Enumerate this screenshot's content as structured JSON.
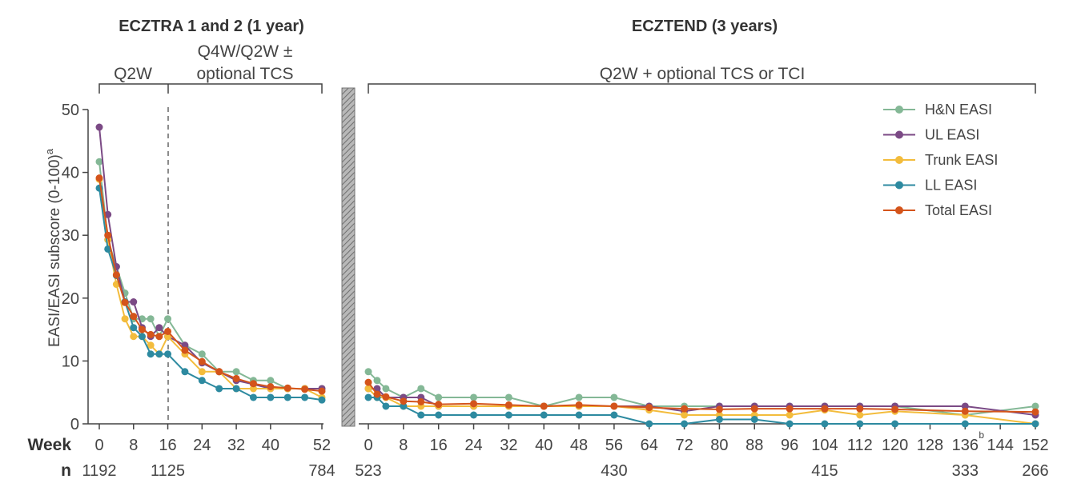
{
  "chart_data": {
    "type": "line",
    "titles": {
      "left": "ECZTRA 1 and 2 (1 year)",
      "right": "ECZTEND (3 years)"
    },
    "phases": {
      "left_a": "Q2W",
      "left_b_line1": "Q4W/Q2W ±",
      "left_b_line2": "optional TCS",
      "right": "Q2W + optional TCS or TCI"
    },
    "ylabel": "EASI/EASI subscore (0-100)",
    "ylabel_sup": "a",
    "ylim": [
      0,
      50
    ],
    "yticks": [
      "0",
      "10",
      "20",
      "30",
      "40",
      "50"
    ],
    "row_labels": {
      "week": "Week",
      "n": "n"
    },
    "left_panel": {
      "xlim": [
        0,
        52
      ],
      "xticks": [
        "0",
        "8",
        "16",
        "24",
        "32",
        "40",
        "52"
      ],
      "n_values": [
        {
          "week": 0,
          "n": "1192"
        },
        {
          "week": 16,
          "n": "1125"
        },
        {
          "week": 52,
          "n": "784"
        }
      ],
      "x": [
        0,
        2,
        4,
        6,
        8,
        10,
        12,
        14,
        16,
        20,
        24,
        28,
        32,
        36,
        40,
        44,
        48,
        52
      ],
      "series": [
        {
          "name": "H&N EASI",
          "color": "#84b896",
          "values": [
            41.7,
            29.3,
            25.0,
            20.8,
            16.7,
            16.7,
            16.7,
            13.9,
            16.7,
            12.5,
            11.1,
            8.3,
            8.3,
            6.9,
            6.9,
            5.6,
            5.6,
            5.6
          ]
        },
        {
          "name": "UL EASI",
          "color": "#7b4a85",
          "values": [
            47.2,
            33.3,
            25.0,
            19.4,
            19.4,
            15.3,
            13.9,
            15.3,
            13.9,
            12.5,
            9.7,
            8.3,
            6.9,
            6.3,
            5.6,
            5.6,
            5.6,
            5.6
          ]
        },
        {
          "name": "Trunk EASI",
          "color": "#f3bc3c",
          "values": [
            38.9,
            29.3,
            22.2,
            16.7,
            13.9,
            13.9,
            12.5,
            11.1,
            13.9,
            11.1,
            8.3,
            8.3,
            5.6,
            5.6,
            5.6,
            5.6,
            5.6,
            4.2
          ]
        },
        {
          "name": "LL EASI",
          "color": "#2d8aa0",
          "values": [
            37.5,
            27.8,
            23.6,
            19.4,
            15.3,
            13.9,
            11.1,
            11.1,
            11.1,
            8.3,
            6.9,
            5.6,
            5.6,
            4.2,
            4.2,
            4.2,
            4.2,
            3.8
          ]
        },
        {
          "name": "Total EASI",
          "color": "#d4541b",
          "values": [
            39.1,
            30.0,
            23.7,
            19.3,
            17.1,
            15.0,
            14.2,
            13.9,
            14.7,
            11.7,
            9.9,
            8.3,
            7.2,
            6.4,
            5.9,
            5.7,
            5.5,
            5.2
          ]
        }
      ]
    },
    "right_panel": {
      "xlim": [
        0,
        152
      ],
      "xticks": [
        "0",
        "8",
        "16",
        "24",
        "32",
        "40",
        "48",
        "56",
        "64",
        "72",
        "80",
        "88",
        "96",
        "104",
        "112",
        "120",
        "128",
        "136",
        "144",
        "152"
      ],
      "xtick_sup": {
        "tick": "136",
        "sup": "b"
      },
      "n_values": [
        {
          "week": 0,
          "n": "523"
        },
        {
          "week": 56,
          "n": "430"
        },
        {
          "week": 104,
          "n": "415"
        },
        {
          "week": 136,
          "n": "333"
        },
        {
          "week": 152,
          "n": "266"
        }
      ],
      "series": [
        {
          "name": "H&N EASI",
          "color": "#84b896",
          "x": [
            0,
            2,
            4,
            8,
            12,
            16,
            24,
            32,
            40,
            48,
            56,
            64,
            72,
            80,
            88,
            96,
            104,
            112,
            120,
            136,
            152
          ],
          "values": [
            8.3,
            6.9,
            5.6,
            4.2,
            5.6,
            4.2,
            4.2,
            4.2,
            2.8,
            4.2,
            4.2,
            2.8,
            2.8,
            2.8,
            2.8,
            2.8,
            2.8,
            2.8,
            2.8,
            1.4,
            2.8
          ]
        },
        {
          "name": "UL EASI",
          "color": "#7b4a85",
          "x": [
            0,
            2,
            4,
            8,
            12,
            16,
            24,
            32,
            40,
            48,
            56,
            64,
            72,
            80,
            88,
            96,
            104,
            112,
            120,
            136,
            152
          ],
          "values": [
            5.6,
            5.6,
            4.2,
            4.2,
            4.2,
            2.8,
            2.8,
            2.8,
            2.8,
            2.8,
            2.8,
            2.8,
            2.0,
            2.8,
            2.8,
            2.8,
            2.8,
            2.8,
            2.8,
            2.8,
            1.4
          ]
        },
        {
          "name": "Trunk EASI",
          "color": "#f3bc3c",
          "x": [
            0,
            2,
            4,
            8,
            12,
            16,
            24,
            32,
            40,
            48,
            56,
            64,
            72,
            80,
            88,
            96,
            104,
            112,
            120,
            136,
            152
          ],
          "values": [
            5.6,
            4.2,
            4.2,
            2.8,
            2.8,
            2.8,
            2.8,
            2.8,
            2.8,
            2.8,
            2.8,
            2.2,
            1.4,
            1.4,
            1.4,
            1.4,
            2.2,
            1.4,
            2.0,
            1.4,
            0
          ]
        },
        {
          "name": "LL EASI",
          "color": "#2d8aa0",
          "x": [
            0,
            2,
            4,
            8,
            12,
            16,
            24,
            32,
            40,
            48,
            56,
            64,
            72,
            80,
            88,
            96,
            104,
            112,
            120,
            136,
            152
          ],
          "values": [
            4.2,
            4.2,
            2.8,
            2.8,
            1.4,
            1.4,
            1.4,
            1.4,
            1.4,
            1.4,
            1.4,
            0,
            0,
            0.7,
            0.7,
            0,
            0,
            0,
            0,
            0,
            0
          ]
        },
        {
          "name": "Total EASI",
          "color": "#d4541b",
          "x": [
            0,
            2,
            4,
            8,
            12,
            16,
            24,
            32,
            40,
            48,
            56,
            64,
            72,
            80,
            88,
            96,
            104,
            112,
            120,
            136,
            152
          ],
          "values": [
            6.6,
            4.7,
            4.3,
            3.6,
            3.5,
            3.1,
            3.2,
            3.0,
            2.8,
            3.0,
            2.8,
            2.6,
            2.4,
            2.3,
            2.4,
            2.4,
            2.4,
            2.4,
            2.3,
            2.0,
            1.9
          ]
        }
      ]
    },
    "legend": [
      "H&N EASI",
      "UL EASI",
      "Trunk EASI",
      "LL EASI",
      "Total EASI"
    ],
    "legend_position": "top-right",
    "grid": false
  }
}
